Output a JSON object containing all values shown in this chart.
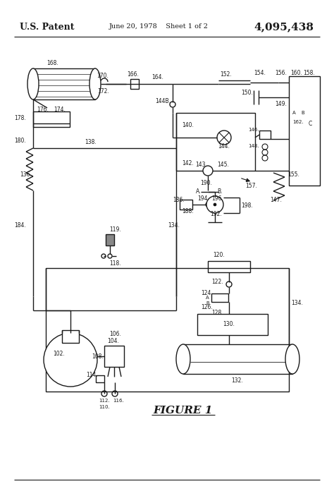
{
  "title_left": "U.S. Patent",
  "title_center": "June 20, 1978    Sheet 1 of 2",
  "title_right": "4,095,438",
  "figure_label": "FIGURE 1",
  "bg_color": "#ffffff",
  "line_color": "#1a1a1a",
  "text_color": "#1a1a1a"
}
